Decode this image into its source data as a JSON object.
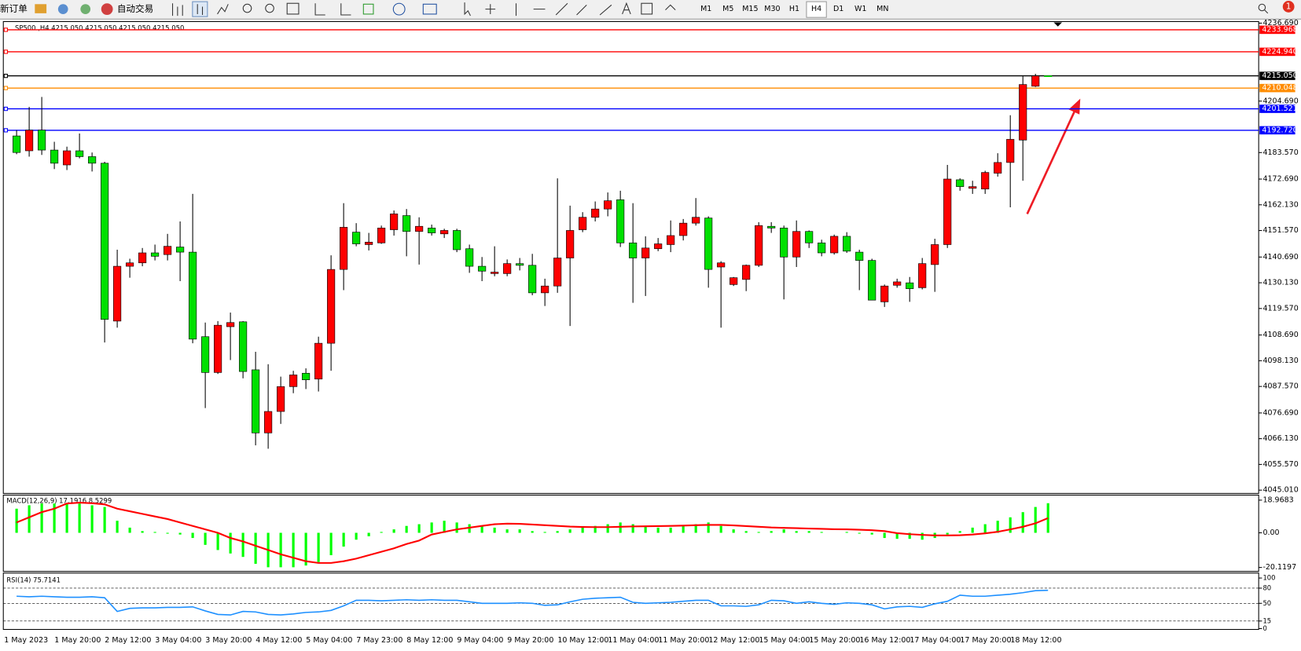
{
  "toolbar": {
    "new_order": "新订单",
    "auto_trading": "自动交易",
    "timeframes": [
      "M1",
      "M5",
      "M15",
      "M30",
      "H1",
      "H4",
      "D1",
      "W1",
      "MN"
    ],
    "active_timeframe": 5,
    "notification_count": 1
  },
  "chart": {
    "type": "candlestick",
    "header": "SP500 ,H4  4215.050 4215.050 4215.050 4215.050",
    "up_color": "#ff0000",
    "down_color": "#00e000",
    "ylim": [
      4044,
      4237
    ],
    "yticks": [
      {
        "value": 4236.69,
        "label": "4236.690"
      },
      {
        "value": 4204.69,
        "label": "4204.690"
      },
      {
        "value": 4183.57,
        "label": "4183.570"
      },
      {
        "value": 4172.69,
        "label": "4172.690"
      },
      {
        "value": 4162.13,
        "label": "4162.130"
      },
      {
        "value": 4151.57,
        "label": "4151.570"
      },
      {
        "value": 4140.69,
        "label": "4140.690"
      },
      {
        "value": 4130.13,
        "label": "4130.130"
      },
      {
        "value": 4119.57,
        "label": "4119.570"
      },
      {
        "value": 4108.69,
        "label": "4108.690"
      },
      {
        "value": 4098.13,
        "label": "4098.130"
      },
      {
        "value": 4087.57,
        "label": "4087.570"
      },
      {
        "value": 4076.69,
        "label": "4076.690"
      },
      {
        "value": 4066.13,
        "label": "4066.130"
      },
      {
        "value": 4055.57,
        "label": "4055.570"
      },
      {
        "value": 4045.01,
        "label": "4045.010"
      }
    ],
    "price_lines": [
      {
        "price": 4233.968,
        "color": "#ff0000"
      },
      {
        "price": {
          "value": 4224.94,
          "label": "4224.940"
        },
        "color": "#ff0000"
      },
      {
        "price": {
          "value": 4215.05,
          "label": "4215.050"
        },
        "color": "#000000"
      },
      {
        "price": 4210.048,
        "color": "#ff8c00"
      },
      {
        "price": 4201.521,
        "color": "#0000ff"
      },
      {
        "price": {
          "value": 4192.72,
          "label": "4192.720"
        },
        "color": "#0000ff"
      }
    ],
    "candles": [
      [
        4190.4,
        4192.8,
        4182.9,
        4183.6
      ],
      [
        4184.3,
        4202.3,
        4181.9,
        4192.8
      ],
      [
        4192.8,
        4206.4,
        4182.6,
        4184.6
      ],
      [
        4184.6,
        4188.0,
        4176.8,
        4179.2
      ],
      [
        4178.5,
        4186.0,
        4176.4,
        4184.3
      ],
      [
        4184.3,
        4191.4,
        4181.2,
        4181.9
      ],
      [
        4181.9,
        4183.6,
        4175.8,
        4179.2
      ],
      [
        4179.2,
        4179.8,
        4105.6,
        4115.1
      ],
      [
        4114.4,
        4143.7,
        4111.7,
        4136.9
      ],
      [
        4136.9,
        4140.0,
        4132.2,
        4138.3
      ],
      [
        4138.3,
        4144.4,
        4136.9,
        4142.4
      ],
      [
        4142.4,
        4145.8,
        4139.3,
        4141.0
      ],
      [
        4141.7,
        4150.2,
        4139.3,
        4145.1
      ],
      [
        4144.8,
        4155.3,
        4130.8,
        4142.7
      ],
      [
        4142.7,
        4166.6,
        4105.3,
        4107.0
      ],
      [
        4108.0,
        4113.8,
        4078.7,
        4093.3
      ],
      [
        4093.3,
        4114.4,
        4092.7,
        4112.7
      ],
      [
        4112.1,
        4117.9,
        4098.4,
        4113.8
      ],
      [
        4114.1,
        4114.4,
        4090.9,
        4093.7
      ],
      [
        4094.4,
        4101.8,
        4063.4,
        4068.5
      ],
      [
        4068.5,
        4096.7,
        4062.0,
        4077.3
      ],
      [
        4077.3,
        4091.6,
        4072.2,
        4087.5
      ],
      [
        4087.5,
        4094.0,
        4084.8,
        4092.3
      ],
      [
        4093.0,
        4095.0,
        4086.5,
        4090.3
      ],
      [
        4090.6,
        4108.0,
        4085.5,
        4105.3
      ],
      [
        4105.3,
        4141.4,
        4094.0,
        4135.6
      ],
      [
        4135.6,
        4162.8,
        4127.1,
        4152.9
      ],
      [
        4150.9,
        4154.6,
        4145.1,
        4146.1
      ],
      [
        4145.8,
        4150.6,
        4143.4,
        4146.8
      ],
      [
        4146.5,
        4153.6,
        4146.1,
        4152.6
      ],
      [
        4151.9,
        4159.8,
        4149.5,
        4158.4
      ],
      [
        4157.7,
        4160.4,
        4141.0,
        4151.2
      ],
      [
        4151.2,
        4157.0,
        4137.6,
        4153.3
      ],
      [
        4152.6,
        4154.0,
        4149.5,
        4150.6
      ],
      [
        4150.2,
        4152.3,
        4148.5,
        4151.6
      ],
      [
        4151.6,
        4152.3,
        4142.7,
        4143.7
      ],
      [
        4144.1,
        4145.8,
        4134.2,
        4136.9
      ],
      [
        4136.9,
        4140.7,
        4130.8,
        4134.9
      ],
      [
        4133.9,
        4145.1,
        4132.8,
        4134.5
      ],
      [
        4133.9,
        4139.7,
        4132.8,
        4138.0
      ],
      [
        4138.0,
        4140.3,
        4135.2,
        4137.3
      ],
      [
        4137.3,
        4142.0,
        4125.0,
        4126.0
      ],
      [
        4126.0,
        4131.8,
        4120.6,
        4128.8
      ],
      [
        4128.8,
        4173.0,
        4126.0,
        4140.3
      ],
      [
        4140.3,
        4161.8,
        4112.4,
        4151.6
      ],
      [
        4151.9,
        4159.1,
        4150.9,
        4157.0
      ],
      [
        4157.0,
        4163.5,
        4155.3,
        4160.4
      ],
      [
        4160.4,
        4167.2,
        4157.4,
        4163.8
      ],
      [
        4164.2,
        4167.9,
        4144.8,
        4146.5
      ],
      [
        4146.5,
        4162.8,
        4121.9,
        4140.3
      ],
      [
        4140.3,
        4149.2,
        4124.7,
        4144.4
      ],
      [
        4144.1,
        4148.5,
        4143.1,
        4146.1
      ],
      [
        4145.8,
        4155.7,
        4142.7,
        4149.5
      ],
      [
        4149.5,
        4156.3,
        4147.5,
        4154.6
      ],
      [
        4154.6,
        4164.9,
        4153.6,
        4157.0
      ],
      [
        4156.7,
        4157.4,
        4128.1,
        4135.6
      ],
      [
        4136.6,
        4139.0,
        4111.7,
        4138.3
      ],
      [
        4129.4,
        4132.5,
        4128.8,
        4132.2
      ],
      [
        4131.5,
        4137.6,
        4126.7,
        4137.3
      ],
      [
        4137.3,
        4155.0,
        4136.6,
        4153.6
      ],
      [
        4153.3,
        4155.0,
        4150.6,
        4152.6
      ],
      [
        4152.6,
        4153.6,
        4123.3,
        4140.7
      ],
      [
        4140.7,
        4155.7,
        4136.6,
        4151.2
      ],
      [
        4151.2,
        4151.6,
        4144.4,
        4146.5
      ],
      [
        4146.5,
        4147.8,
        4141.0,
        4142.4
      ],
      [
        4142.4,
        4149.9,
        4141.7,
        4149.2
      ],
      [
        4149.2,
        4150.9,
        4142.4,
        4143.1
      ],
      [
        4142.7,
        4143.7,
        4127.1,
        4139.3
      ],
      [
        4139.3,
        4140.0,
        4123.0,
        4123.0
      ],
      [
        4122.3,
        4129.4,
        4120.2,
        4128.8
      ],
      [
        4129.1,
        4131.8,
        4128.1,
        4130.5
      ],
      [
        4130.1,
        4132.5,
        4122.3,
        4127.7
      ],
      [
        4128.1,
        4140.3,
        4127.4,
        4138.0
      ],
      [
        4137.6,
        4148.2,
        4126.4,
        4145.8
      ],
      [
        4145.8,
        4178.5,
        4144.4,
        4172.7
      ],
      [
        4172.4,
        4173.0,
        4167.9,
        4169.6
      ],
      [
        4168.9,
        4172.0,
        4166.6,
        4169.6
      ],
      [
        4168.6,
        4176.1,
        4166.6,
        4175.4
      ],
      [
        4175.1,
        4183.3,
        4173.7,
        4179.5
      ],
      [
        4179.5,
        4198.9,
        4161.1,
        4189.0
      ],
      [
        4188.7,
        4214.9,
        4172.0,
        4211.5
      ],
      [
        4210.8,
        4215.9,
        4210.5,
        4215.05
      ],
      [
        4215.05,
        4215.05,
        4215.05,
        4215.05
      ]
    ],
    "time_labels": [
      "1 May 2023",
      "1 May 20:00",
      "2 May 12:00",
      "3 May 04:00",
      "3 May 20:00",
      "4 May 12:00",
      "5 May 04:00",
      "7 May 23:00",
      "8 May 12:00",
      "9 May 04:00",
      "9 May 20:00",
      "10 May 12:00",
      "11 May 04:00",
      "11 May 20:00",
      "12 May 12:00",
      "15 May 04:00",
      "15 May 20:00",
      "16 May 12:00",
      "17 May 04:00",
      "17 May 20:00",
      "18 May 12:00"
    ]
  },
  "macd": {
    "label": "MACD(12,26,9) 17.1916 8.5299",
    "ylim": [
      -22.4,
      21.9
    ],
    "yticks": [
      18.9683,
      {
        "value": 0,
        "label": "0.00"
      },
      -20.1197
    ],
    "histogram_color": "#00ff00",
    "signal_color": "#ff0000",
    "histogram": [
      14,
      16,
      17,
      17,
      17,
      17,
      16,
      15,
      7,
      3,
      1,
      0.5,
      -0.5,
      -1,
      -3,
      -7,
      -10,
      -12,
      -14,
      -18,
      -20,
      -20,
      -20,
      -19,
      -17,
      -13,
      -8,
      -4,
      -2,
      0.5,
      2,
      4,
      5,
      6,
      7,
      6,
      5,
      4,
      3,
      2,
      2,
      1,
      0.5,
      1,
      2,
      3,
      4,
      5,
      6,
      5,
      4,
      3,
      3,
      4,
      5,
      6,
      4,
      2,
      1,
      0.5,
      1,
      2,
      1,
      1,
      0.5,
      0,
      0.5,
      -0.5,
      -1,
      -3,
      -3.5,
      -3.5,
      -4,
      -3,
      -1,
      1,
      3,
      5,
      7,
      9,
      12,
      15,
      17.1916
    ],
    "signal": [
      6,
      9,
      12,
      14,
      17,
      17.5,
      17.2,
      16.5,
      14,
      12.5,
      11,
      9.5,
      8,
      6,
      4,
      2,
      0,
      -3,
      -5,
      -7.5,
      -10,
      -12.5,
      -14.5,
      -16.5,
      -17.5,
      -17.5,
      -16.5,
      -15,
      -13,
      -11,
      -9,
      -6.5,
      -4.5,
      -1,
      0.5,
      2,
      3,
      4,
      5,
      5.3,
      5.2,
      4.8,
      4.4,
      4,
      3.6,
      3.4,
      3.3,
      3.3,
      3.5,
      3.7,
      3.8,
      3.9,
      4,
      4.2,
      4.4,
      4.6,
      4.6,
      4.3,
      3.9,
      3.5,
      3.1,
      2.9,
      2.7,
      2.5,
      2.3,
      2.1,
      2,
      1.8,
      1.5,
      1,
      -0.2,
      -0.8,
      -1.2,
      -1.5,
      -1.5,
      -1.4,
      -1,
      -0.3,
      0.6,
      2,
      3.5,
      5.5,
      8.5299
    ]
  },
  "rsi": {
    "label": "RSI(14) 75.7141",
    "ylim": [
      0,
      100
    ],
    "yticks": [
      100,
      80,
      50,
      15,
      0
    ],
    "color": "#1e90ff",
    "values": [
      64,
      63,
      64,
      63,
      62,
      62,
      63,
      61,
      34,
      40,
      41,
      41,
      42,
      42,
      43,
      35,
      28,
      27,
      34,
      33,
      28,
      27,
      29,
      32,
      33,
      36,
      45,
      56,
      56,
      55,
      56,
      57,
      56,
      57,
      56,
      56,
      53,
      50,
      50,
      50,
      51,
      50,
      46,
      47,
      53,
      58,
      60,
      61,
      62,
      52,
      50,
      51,
      52,
      54,
      56,
      56,
      45,
      45,
      44,
      47,
      56,
      55,
      50,
      53,
      50,
      48,
      51,
      50,
      47,
      39,
      43,
      44,
      42,
      49,
      54,
      66,
      64,
      64,
      66,
      68,
      71,
      75,
      75.7141
    ]
  }
}
